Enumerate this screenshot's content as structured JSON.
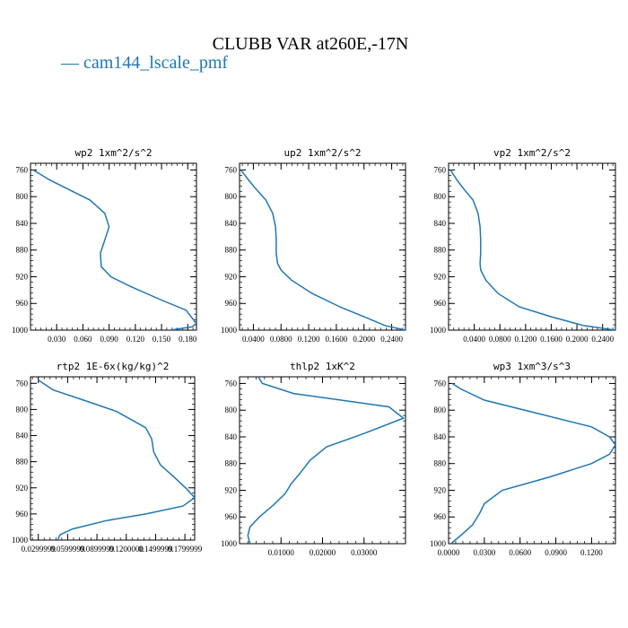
{
  "figure": {
    "title": "CLUBB VAR at260E,-17N",
    "legend_label": "— cam144_lscale_pmf",
    "line_color": "#1f77b4"
  },
  "chart_data": [
    {
      "type": "line",
      "title": "wp2  1xm^2/s^2",
      "xlim": [
        0.0,
        0.19
      ],
      "xticks": [
        0.03,
        0.06,
        0.09,
        0.12,
        0.15,
        0.18
      ],
      "xtick_labels": [
        "0.030",
        "0.060",
        "0.090",
        "0.120",
        "0.150",
        "0.180"
      ],
      "ylim": [
        1000,
        750
      ],
      "yticks": [
        760,
        800,
        840,
        880,
        920,
        960,
        1000
      ],
      "ytick_labels": [
        "760",
        "800",
        "840",
        "880",
        "920",
        "960",
        "1000"
      ],
      "x": [
        0.003,
        0.022,
        0.045,
        0.068,
        0.085,
        0.09,
        0.085,
        0.08,
        0.081,
        0.092,
        0.115,
        0.15,
        0.178,
        0.19,
        0.185,
        0.16
      ],
      "y": [
        760,
        775,
        790,
        805,
        825,
        845,
        865,
        885,
        905,
        920,
        935,
        955,
        970,
        990,
        995,
        1000
      ]
    },
    {
      "type": "line",
      "title": "up2  1xm^2/s^2",
      "xlim": [
        0.02,
        0.26
      ],
      "xticks": [
        0.04,
        0.08,
        0.12,
        0.16,
        0.2,
        0.24
      ],
      "xtick_labels": [
        "0.0400",
        "0.0800",
        "0.1200",
        "0.1600",
        "0.2000",
        "0.2400"
      ],
      "ylim": [
        1000,
        750
      ],
      "yticks": [
        760,
        800,
        840,
        880,
        920,
        960,
        1000
      ],
      "ytick_labels": [
        "760",
        "800",
        "840",
        "880",
        "920",
        "960",
        "1000"
      ],
      "x": [
        0.022,
        0.033,
        0.045,
        0.058,
        0.068,
        0.072,
        0.073,
        0.073,
        0.075,
        0.08,
        0.095,
        0.125,
        0.165,
        0.2,
        0.23,
        0.26
      ],
      "y": [
        760,
        775,
        790,
        805,
        825,
        845,
        865,
        885,
        900,
        910,
        925,
        945,
        965,
        980,
        993,
        1000
      ]
    },
    {
      "type": "line",
      "title": "vp2  1xm^2/s^2",
      "xlim": [
        0.0,
        0.26
      ],
      "xticks": [
        0.04,
        0.08,
        0.12,
        0.16,
        0.2,
        0.24
      ],
      "xtick_labels": [
        "0.0400",
        "0.0800",
        "0.1200",
        "0.1600",
        "0.2000",
        "0.2400"
      ],
      "ylim": [
        1000,
        750
      ],
      "yticks": [
        760,
        800,
        840,
        880,
        920,
        960,
        1000
      ],
      "ytick_labels": [
        "760",
        "800",
        "840",
        "880",
        "920",
        "960",
        "1000"
      ],
      "x": [
        0.003,
        0.013,
        0.025,
        0.038,
        0.046,
        0.049,
        0.05,
        0.05,
        0.049,
        0.05,
        0.058,
        0.077,
        0.11,
        0.16,
        0.21,
        0.26
      ],
      "y": [
        760,
        775,
        790,
        805,
        825,
        845,
        865,
        885,
        900,
        910,
        925,
        945,
        965,
        980,
        993,
        1000
      ]
    },
    {
      "type": "line",
      "title": "rtp2  1E-6x(kg/kg)^2",
      "xlim": [
        0.022,
        0.19
      ],
      "xticks": [
        0.03,
        0.06,
        0.09,
        0.12,
        0.15,
        0.18
      ],
      "xtick_labels": [
        "0.0299999",
        "0.0599999",
        "0.0899999",
        "0.1200000",
        "0.1499999",
        "0.1799999"
      ],
      "ylim": [
        1000,
        750
      ],
      "yticks": [
        760,
        800,
        840,
        880,
        920,
        960,
        1000
      ],
      "ytick_labels": [
        "760",
        "800",
        "840",
        "880",
        "920",
        "960",
        "1000"
      ],
      "x": [
        0.03,
        0.045,
        0.075,
        0.11,
        0.14,
        0.146,
        0.148,
        0.155,
        0.17,
        0.182,
        0.19,
        0.178,
        0.14,
        0.1,
        0.065,
        0.052,
        0.05
      ],
      "y": [
        755,
        770,
        785,
        803,
        828,
        845,
        865,
        885,
        905,
        922,
        935,
        948,
        960,
        970,
        983,
        992,
        1000
      ]
    },
    {
      "type": "line",
      "title": "thlp2  1xK^2",
      "xlim": [
        0.0,
        0.04
      ],
      "xticks": [
        0.01,
        0.02,
        0.03
      ],
      "xtick_labels": [
        "0.01000",
        "0.02000",
        "0.03000"
      ],
      "ylim": [
        1000,
        750
      ],
      "yticks": [
        760,
        800,
        840,
        880,
        920,
        960,
        1000
      ],
      "ytick_labels": [
        "760",
        "800",
        "840",
        "880",
        "920",
        "960",
        "1000"
      ],
      "x": [
        0.0045,
        0.0055,
        0.013,
        0.036,
        0.0395,
        0.03,
        0.021,
        0.017,
        0.0145,
        0.0125,
        0.011,
        0.0082,
        0.0048,
        0.0025,
        0.002,
        0.0025
      ],
      "y": [
        750,
        760,
        775,
        795,
        812,
        835,
        855,
        875,
        895,
        910,
        925,
        942,
        960,
        975,
        988,
        1000
      ]
    },
    {
      "type": "line",
      "title": "wp3  1xm^3/s^3",
      "xlim": [
        0.0,
        0.14
      ],
      "xticks": [
        0.0,
        0.03,
        0.06,
        0.09,
        0.12
      ],
      "xtick_labels": [
        "0.0000",
        "0.0300",
        "0.0600",
        "0.0900",
        "0.1200"
      ],
      "ylim": [
        1000,
        750
      ],
      "yticks": [
        760,
        800,
        840,
        880,
        920,
        960,
        1000
      ],
      "ytick_labels": [
        "760",
        "800",
        "840",
        "880",
        "920",
        "960",
        "1000"
      ],
      "x": [
        0.003,
        0.01,
        0.03,
        0.075,
        0.12,
        0.135,
        0.14,
        0.135,
        0.12,
        0.085,
        0.045,
        0.03,
        0.026,
        0.02,
        0.012,
        0.002
      ],
      "y": [
        760,
        768,
        785,
        805,
        825,
        840,
        852,
        866,
        880,
        900,
        920,
        940,
        955,
        972,
        985,
        1000
      ]
    }
  ]
}
